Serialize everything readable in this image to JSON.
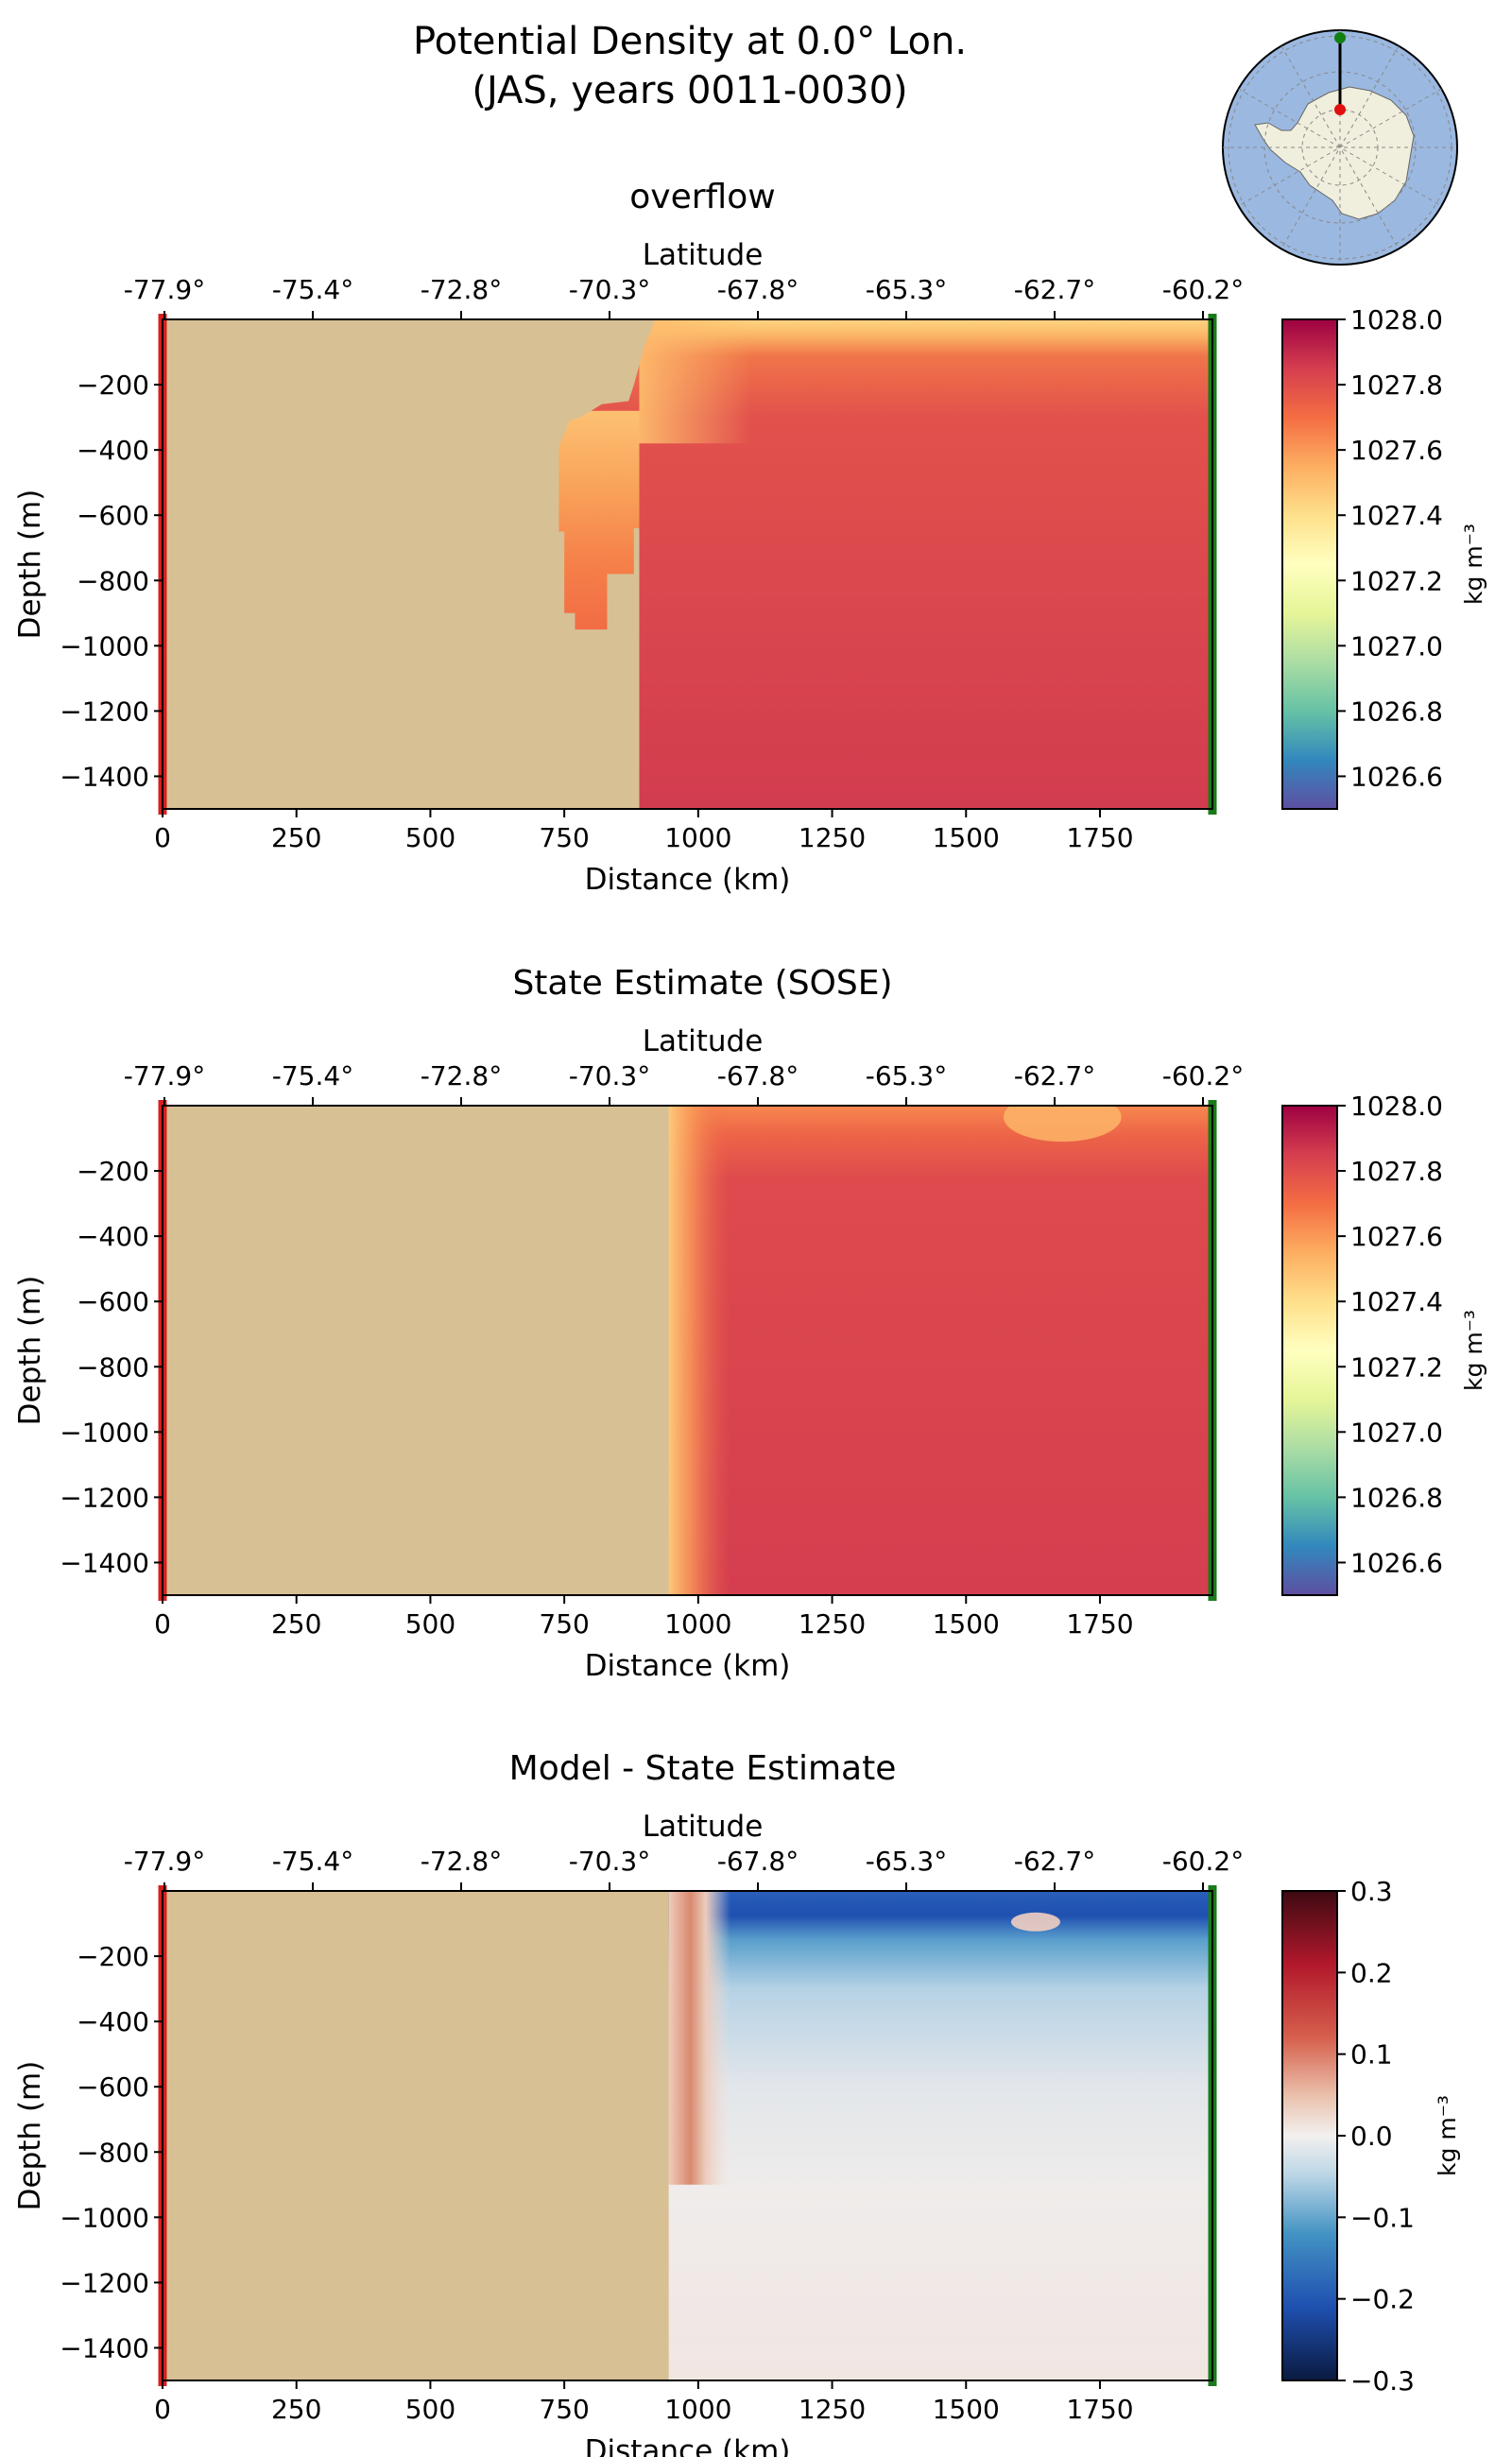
{
  "figure": {
    "title_line1": "Potential Density at 0.0° Lon.",
    "title_line2": "(JAS, years 0011-0030)"
  },
  "chart_data": [
    {
      "type": "heatmap",
      "title": "overflow",
      "x_top_label": "Latitude",
      "x_top_ticks": [
        "-77.9°",
        "-75.4°",
        "-72.8°",
        "-70.3°",
        "-67.8°",
        "-65.3°",
        "-62.7°",
        "-60.2°"
      ],
      "xlabel": "Distance (km)",
      "xticks": [
        0,
        250,
        500,
        750,
        1000,
        1250,
        1500,
        1750
      ],
      "xlim": [
        0,
        1960
      ],
      "ylabel": "Depth (m)",
      "yticks": [
        -200,
        -400,
        -600,
        -800,
        -1000,
        -1200,
        -1400
      ],
      "ylim": [
        -1500,
        0
      ],
      "colorbar_label": "kg m⁻³",
      "colorbar_ticks": [
        1028.0,
        1027.8,
        1027.6,
        1027.4,
        1027.2,
        1027.0,
        1026.8,
        1026.6
      ],
      "color_range": [
        1026.5,
        1028.0
      ],
      "colormap": "Spectral_r",
      "land_color": "#d8c095",
      "left_boundary_color": "#d62020",
      "right_boundary_color": "#1a7a1a",
      "land_profile": [
        [
          0,
          0
        ],
        [
          920,
          0
        ],
        [
          900,
          -80
        ],
        [
          880,
          -200
        ],
        [
          870,
          -250
        ],
        [
          820,
          -260
        ],
        [
          780,
          -300
        ],
        [
          760,
          -310
        ],
        [
          740,
          -390
        ],
        [
          740,
          -650
        ],
        [
          750,
          -650
        ],
        [
          750,
          -900
        ],
        [
          770,
          -900
        ],
        [
          770,
          -950
        ],
        [
          830,
          -950
        ],
        [
          830,
          -780
        ],
        [
          880,
          -780
        ],
        [
          880,
          -640
        ],
        [
          890,
          -640
        ],
        [
          890,
          -1500
        ],
        [
          0,
          -1500
        ]
      ],
      "field": {
        "deep": 1027.86,
        "surface": 1027.32,
        "mixed_layer_depth_m": 110,
        "cavity_surface": 1027.48,
        "cavity_deep": 1027.72
      }
    },
    {
      "type": "heatmap",
      "title": "State Estimate (SOSE)",
      "x_top_label": "Latitude",
      "x_top_ticks": [
        "-77.9°",
        "-75.4°",
        "-72.8°",
        "-70.3°",
        "-67.8°",
        "-65.3°",
        "-62.7°",
        "-60.2°"
      ],
      "xlabel": "Distance (km)",
      "xticks": [
        0,
        250,
        500,
        750,
        1000,
        1250,
        1500,
        1750
      ],
      "xlim": [
        0,
        1960
      ],
      "ylabel": "Depth (m)",
      "yticks": [
        -200,
        -400,
        -600,
        -800,
        -1000,
        -1200,
        -1400
      ],
      "ylim": [
        -1500,
        0
      ],
      "colorbar_label": "kg m⁻³",
      "colorbar_ticks": [
        1028.0,
        1027.8,
        1027.6,
        1027.4,
        1027.2,
        1027.0,
        1026.8,
        1026.6
      ],
      "color_range": [
        1026.5,
        1028.0
      ],
      "colormap": "Spectral_r",
      "land_color": "#d8c095",
      "left_boundary_color": "#d62020",
      "right_boundary_color": "#1a7a1a",
      "land_profile": [
        [
          0,
          0
        ],
        [
          945,
          0
        ],
        [
          945,
          -1500
        ],
        [
          0,
          -1500
        ]
      ],
      "field": {
        "deep": 1027.86,
        "surface": 1027.65,
        "mixed_layer_depth_m": 60,
        "coastal_surface": 1027.3
      }
    },
    {
      "type": "heatmap",
      "title": "Model - State Estimate",
      "x_top_label": "Latitude",
      "x_top_ticks": [
        "-77.9°",
        "-75.4°",
        "-72.8°",
        "-70.3°",
        "-67.8°",
        "-65.3°",
        "-62.7°",
        "-60.2°"
      ],
      "xlabel": "Distance (km)",
      "xticks": [
        0,
        250,
        500,
        750,
        1000,
        1250,
        1500,
        1750
      ],
      "xlim": [
        0,
        1960
      ],
      "ylabel": "Depth (m)",
      "yticks": [
        -200,
        -400,
        -600,
        -800,
        -1000,
        -1200,
        -1400
      ],
      "ylim": [
        -1500,
        0
      ],
      "colorbar_label": "kg m⁻³",
      "colorbar_ticks": [
        0.3,
        0.2,
        0.1,
        0.0,
        -0.1,
        -0.2,
        -0.3
      ],
      "color_range": [
        -0.3,
        0.3
      ],
      "colormap": "RdBu_r",
      "land_color": "#d8c095",
      "left_boundary_color": "#d62020",
      "right_boundary_color": "#1a7a1a",
      "land_profile": [
        [
          0,
          0
        ],
        [
          945,
          0
        ],
        [
          945,
          -1500
        ],
        [
          0,
          -1500
        ]
      ],
      "field": {
        "surface_anomaly": -0.2,
        "upper_anomaly": -0.05,
        "deep_anomaly": 0.01,
        "coastal_anomaly": 0.12
      }
    }
  ],
  "inset_map": {
    "ocean_color": "#9bb8e0",
    "land_color": "#f0eedc",
    "section_line_color": "#000000",
    "start_marker_color": "#e01010",
    "end_marker_color": "#108010"
  }
}
